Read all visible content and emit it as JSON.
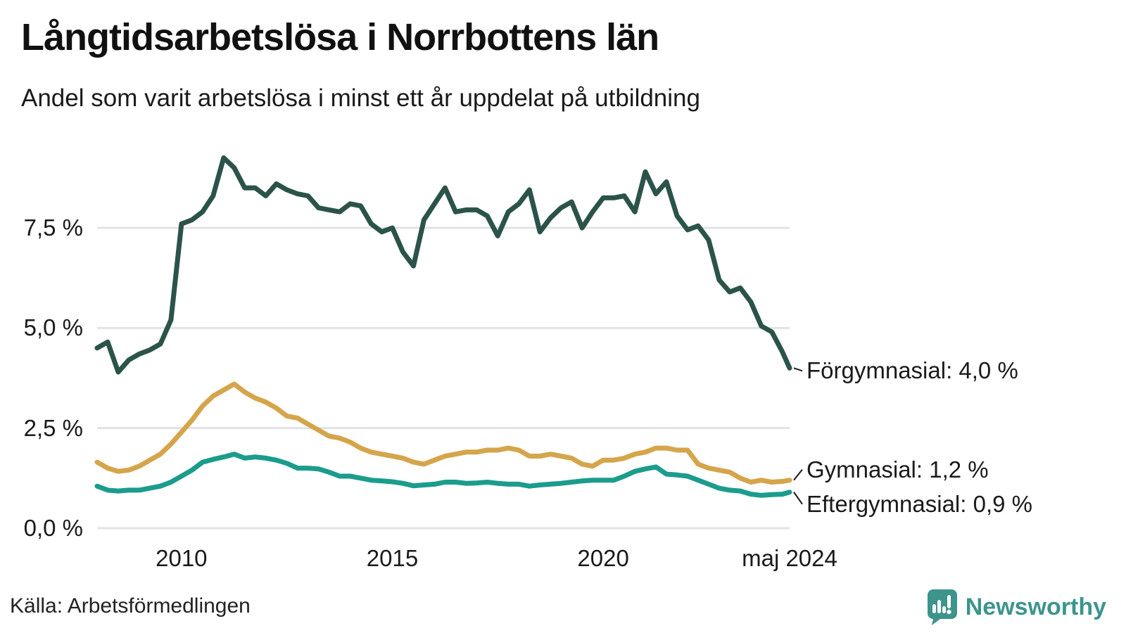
{
  "header": {
    "title": "Långtidsarbetslösa i Norrbottens län",
    "subtitle": "Andel som varit arbetslösa i minst ett år uppdelat på utbildning"
  },
  "footer": {
    "source": "Källa: Arbetsförmedlingen",
    "brand_name": "Newsworthy",
    "brand_color": "#3d948c",
    "brand_icon": "newsworthy-speech-bubble-bar-chart-icon"
  },
  "colors": {
    "grid": "#e3e3e6",
    "text": "#1a1a1a",
    "leader_line": "#1a1a1a"
  },
  "chart_data": {
    "type": "line",
    "title": "Långtidsarbetslösa i Norrbottens län",
    "subtitle": "Andel som varit arbetslösa i minst ett år uppdelat på utbildning",
    "xlabel": "",
    "ylabel": "",
    "unit": "%",
    "grid": "horizontal",
    "legend_position": "right-end-labels",
    "xlim": [
      2008.0,
      2024.42
    ],
    "ylim": [
      0.0,
      9.6
    ],
    "x_ticks": [
      {
        "value": 2010,
        "label": "2010"
      },
      {
        "value": 2015,
        "label": "2015"
      },
      {
        "value": 2020,
        "label": "2020"
      },
      {
        "value": 2024.42,
        "label": "maj 2024"
      }
    ],
    "y_ticks": [
      {
        "value": 7.5,
        "label": "7,5 %"
      },
      {
        "value": 5.0,
        "label": "5,0 %"
      },
      {
        "value": 2.5,
        "label": "2,5 %"
      },
      {
        "value": 0.0,
        "label": "0,0 %"
      }
    ],
    "x": [
      2008.0,
      2008.25,
      2008.5,
      2008.75,
      2009.0,
      2009.25,
      2009.5,
      2009.75,
      2010.0,
      2010.25,
      2010.5,
      2010.75,
      2011.0,
      2011.25,
      2011.5,
      2011.75,
      2012.0,
      2012.25,
      2012.5,
      2012.75,
      2013.0,
      2013.25,
      2013.5,
      2013.75,
      2014.0,
      2014.25,
      2014.5,
      2014.75,
      2015.0,
      2015.25,
      2015.5,
      2015.75,
      2016.0,
      2016.25,
      2016.5,
      2016.75,
      2017.0,
      2017.25,
      2017.5,
      2017.75,
      2018.0,
      2018.25,
      2018.5,
      2018.75,
      2019.0,
      2019.25,
      2019.5,
      2019.75,
      2020.0,
      2020.25,
      2020.5,
      2020.75,
      2021.0,
      2021.25,
      2021.5,
      2021.75,
      2022.0,
      2022.25,
      2022.5,
      2022.75,
      2023.0,
      2023.25,
      2023.5,
      2023.75,
      2024.0,
      2024.25,
      2024.42
    ],
    "series": [
      {
        "name": "Förgymnasial",
        "color": "#2b5349",
        "end_label": "Förgymnasial: 4,0 %",
        "end_value_text": "4,0 %",
        "values": [
          4.5,
          4.65,
          3.9,
          4.2,
          4.35,
          4.45,
          4.6,
          5.2,
          7.6,
          7.7,
          7.9,
          8.3,
          9.25,
          9.0,
          8.5,
          8.5,
          8.3,
          8.6,
          8.45,
          8.35,
          8.3,
          8.0,
          7.95,
          7.9,
          8.1,
          8.05,
          7.6,
          7.4,
          7.5,
          6.9,
          6.55,
          7.7,
          8.1,
          8.5,
          7.9,
          7.95,
          7.95,
          7.8,
          7.3,
          7.9,
          8.1,
          8.45,
          7.4,
          7.75,
          8.0,
          8.15,
          7.5,
          7.9,
          8.25,
          8.25,
          8.3,
          7.9,
          8.9,
          8.35,
          8.65,
          7.8,
          7.45,
          7.55,
          7.2,
          6.2,
          5.9,
          6.0,
          5.65,
          5.05,
          4.9,
          4.4,
          4.0
        ]
      },
      {
        "name": "Gymnasial",
        "color": "#d5a54b",
        "end_label": "Gymnasial: 1,2 %",
        "end_value_text": "1,2 %",
        "values": [
          1.65,
          1.5,
          1.42,
          1.45,
          1.55,
          1.7,
          1.85,
          2.1,
          2.4,
          2.7,
          3.05,
          3.3,
          3.45,
          3.6,
          3.4,
          3.25,
          3.15,
          3.0,
          2.8,
          2.75,
          2.6,
          2.45,
          2.3,
          2.25,
          2.15,
          2.0,
          1.9,
          1.85,
          1.8,
          1.75,
          1.65,
          1.6,
          1.7,
          1.8,
          1.85,
          1.9,
          1.9,
          1.95,
          1.95,
          2.0,
          1.95,
          1.8,
          1.8,
          1.85,
          1.8,
          1.75,
          1.6,
          1.55,
          1.7,
          1.7,
          1.75,
          1.85,
          1.9,
          2.0,
          2.0,
          1.95,
          1.95,
          1.6,
          1.5,
          1.45,
          1.4,
          1.25,
          1.15,
          1.2,
          1.15,
          1.17,
          1.2
        ]
      },
      {
        "name": "Eftergymnasial",
        "color": "#1b9c8c",
        "end_label": "Eftergymnasial: 0,9 %",
        "end_value_text": "0,9 %",
        "values": [
          1.05,
          0.95,
          0.93,
          0.95,
          0.95,
          1.0,
          1.05,
          1.15,
          1.3,
          1.45,
          1.65,
          1.72,
          1.78,
          1.85,
          1.75,
          1.78,
          1.75,
          1.7,
          1.62,
          1.5,
          1.5,
          1.48,
          1.4,
          1.3,
          1.3,
          1.25,
          1.2,
          1.18,
          1.16,
          1.12,
          1.06,
          1.08,
          1.1,
          1.15,
          1.15,
          1.12,
          1.13,
          1.15,
          1.12,
          1.1,
          1.1,
          1.05,
          1.08,
          1.1,
          1.12,
          1.15,
          1.18,
          1.2,
          1.2,
          1.2,
          1.3,
          1.42,
          1.48,
          1.53,
          1.35,
          1.33,
          1.3,
          1.2,
          1.1,
          1.0,
          0.95,
          0.93,
          0.85,
          0.82,
          0.84,
          0.85,
          0.9
        ]
      }
    ]
  }
}
